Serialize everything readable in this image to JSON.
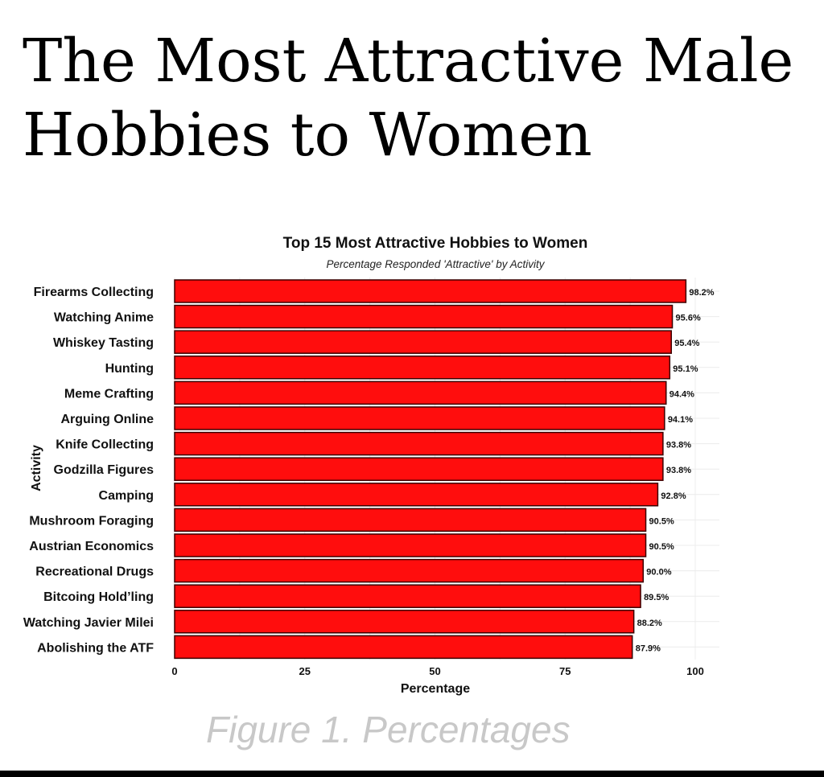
{
  "page": {
    "headline": "The Most Attractive Male Hobbies to Women",
    "caption": "Figure 1. Percentages"
  },
  "colors": {
    "bar_fill": "#ff0d0d",
    "bar_stroke": "#3a0000",
    "grid": "#ececec",
    "caption": "#c8c8c8"
  },
  "chart_data": {
    "type": "bar",
    "orientation": "horizontal",
    "title": "Top 15 Most Attractive Hobbies to Women",
    "subtitle": "Percentage Responded 'Attractive' by Activity",
    "xlabel": "Percentage",
    "ylabel": "Activity",
    "xlim": [
      0,
      100
    ],
    "xticks": [
      0,
      25,
      50,
      75,
      100
    ],
    "grid": true,
    "legend": "none",
    "categories": [
      "Firearms Collecting",
      "Watching Anime",
      "Whiskey Tasting",
      "Hunting",
      "Meme Crafting",
      "Arguing Online",
      "Knife Collecting",
      "Godzilla Figures",
      "Camping",
      "Mushroom Foraging",
      "Austrian Economics",
      "Recreational Drugs",
      "Bitcoing Hold’ling",
      "Watching Javier Milei",
      "Abolishing the ATF"
    ],
    "values": [
      98.2,
      95.6,
      95.4,
      95.1,
      94.4,
      94.1,
      93.8,
      93.8,
      92.8,
      90.5,
      90.5,
      90.0,
      89.5,
      88.2,
      87.9
    ],
    "value_labels": [
      "98.2%",
      "95.6%",
      "95.4%",
      "95.1%",
      "94.4%",
      "94.1%",
      "93.8%",
      "93.8%",
      "92.8%",
      "90.5%",
      "90.5%",
      "90.0%",
      "89.5%",
      "88.2%",
      "87.9%"
    ]
  }
}
